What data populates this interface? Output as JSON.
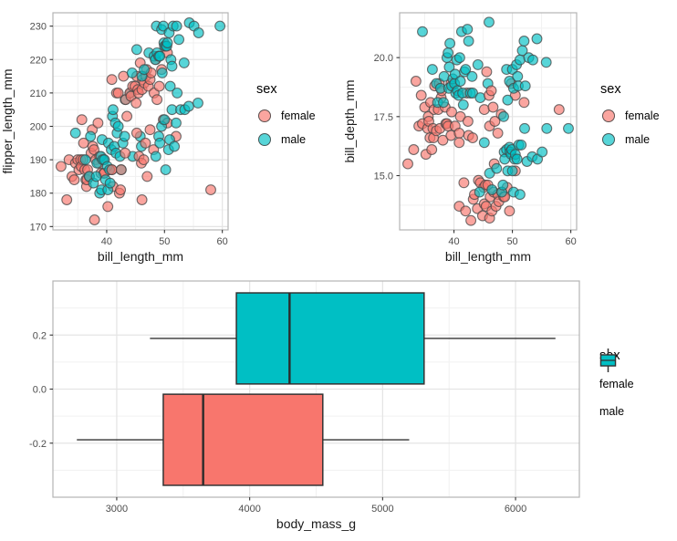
{
  "figure": {
    "background": "#FFFFFF"
  },
  "palette": {
    "female": "#F8766D",
    "male": "#00BFC4",
    "point_stroke": "#454545",
    "box_stroke": "#333333",
    "median_stroke": "#2B2B2B",
    "grid_major": "#E4E4E4",
    "grid_minor": "#F1F1F1",
    "panel_border": "#B4B4B4",
    "panel_background": "#FFFFFF",
    "tick_mark": "#333333",
    "tick_label": "#4D4D4D",
    "axis_title": "#1A1A1A"
  },
  "legend": {
    "title": "sex",
    "items": [
      {
        "label": "female",
        "color_key": "female"
      },
      {
        "label": "male",
        "color_key": "male"
      }
    ]
  },
  "chart_data": {
    "dataset_note": "each record: [bill_length_mm, flipper_length_mm, bill_depth_mm, sex(f/m)]; values estimated from plotted points",
    "records": [
      [
        32.1,
        188,
        15.5,
        "f"
      ],
      [
        33.1,
        178,
        16.1,
        "f"
      ],
      [
        33.5,
        190,
        19.0,
        "f"
      ],
      [
        34.0,
        185,
        17.1,
        "f"
      ],
      [
        34.4,
        184,
        18.4,
        "f"
      ],
      [
        34.6,
        189,
        17.2,
        "f"
      ],
      [
        35.0,
        190,
        17.9,
        "f"
      ],
      [
        35.2,
        187,
        15.9,
        "f"
      ],
      [
        35.5,
        190,
        17.0,
        "f"
      ],
      [
        35.6,
        188,
        17.5,
        "f"
      ],
      [
        35.7,
        202,
        17.3,
        "f"
      ],
      [
        35.9,
        190,
        16.6,
        "f"
      ],
      [
        36.0,
        195,
        18.1,
        "f"
      ],
      [
        36.2,
        187,
        16.1,
        "f"
      ],
      [
        36.4,
        184,
        17.0,
        "f"
      ],
      [
        36.5,
        182,
        16.6,
        "f"
      ],
      [
        36.6,
        184,
        17.8,
        "f"
      ],
      [
        36.7,
        187,
        18.8,
        "f"
      ],
      [
        37.0,
        185,
        16.9,
        "f"
      ],
      [
        37.3,
        192,
        17.8,
        "f"
      ],
      [
        37.5,
        199,
        18.9,
        "f"
      ],
      [
        37.6,
        194,
        17.0,
        "f"
      ],
      [
        37.8,
        193,
        18.3,
        "f"
      ],
      [
        37.9,
        172,
        18.6,
        "f"
      ],
      [
        38.1,
        190,
        16.5,
        "f"
      ],
      [
        38.5,
        201,
        17.9,
        "f"
      ],
      [
        38.6,
        189,
        17.2,
        "f"
      ],
      [
        38.8,
        191,
        17.2,
        "f"
      ],
      [
        39.0,
        186,
        17.1,
        "f"
      ],
      [
        39.5,
        186,
        16.7,
        "f"
      ],
      [
        39.5,
        190,
        18.9,
        "f"
      ],
      [
        39.6,
        186,
        17.7,
        "f"
      ],
      [
        40.2,
        176,
        17.1,
        "f"
      ],
      [
        40.9,
        187,
        16.8,
        "f"
      ],
      [
        41.1,
        182,
        17.5,
        "f"
      ],
      [
        42.2,
        180,
        18.5,
        "f"
      ],
      [
        34.6,
        198,
        21.1,
        "m"
      ],
      [
        36.3,
        190,
        19.5,
        "m"
      ],
      [
        37.0,
        185,
        18.9,
        "m"
      ],
      [
        37.2,
        197,
        18.1,
        "m"
      ],
      [
        37.7,
        183,
        18.7,
        "m"
      ],
      [
        38.2,
        185,
        18.1,
        "m"
      ],
      [
        38.3,
        189,
        19.2,
        "m"
      ],
      [
        38.8,
        180,
        20.0,
        "m"
      ],
      [
        39.0,
        191,
        20.2,
        "m"
      ],
      [
        39.1,
        181,
        18.7,
        "m"
      ],
      [
        39.2,
        196,
        19.6,
        "m"
      ],
      [
        39.3,
        190,
        20.6,
        "m"
      ],
      [
        39.6,
        190,
        18.8,
        "m"
      ],
      [
        39.8,
        184,
        19.1,
        "m"
      ],
      [
        40.1,
        188,
        18.9,
        "m"
      ],
      [
        40.2,
        181,
        19.3,
        "m"
      ],
      [
        40.3,
        195,
        18.5,
        "m"
      ],
      [
        40.5,
        187,
        19.9,
        "m"
      ],
      [
        40.6,
        183,
        18.6,
        "m"
      ],
      [
        40.8,
        193,
        18.4,
        "m"
      ],
      [
        41.0,
        203,
        20.0,
        "m"
      ],
      [
        41.1,
        205,
        19.0,
        "m"
      ],
      [
        41.3,
        194,
        21.1,
        "m"
      ],
      [
        41.5,
        201,
        18.5,
        "m"
      ],
      [
        41.6,
        192,
        18.0,
        "m"
      ],
      [
        41.8,
        198,
        19.4,
        "m"
      ],
      [
        42.0,
        200,
        19.5,
        "m"
      ],
      [
        42.3,
        191,
        21.2,
        "m"
      ],
      [
        42.5,
        187,
        20.7,
        "m"
      ],
      [
        42.8,
        195,
        18.5,
        "m"
      ],
      [
        43.1,
        197,
        19.2,
        "m"
      ],
      [
        43.2,
        208,
        18.5,
        "m"
      ],
      [
        44.1,
        210,
        19.7,
        "m"
      ],
      [
        44.5,
        191,
        18.3,
        "m"
      ],
      [
        45.8,
        197,
        18.9,
        "m"
      ],
      [
        46.0,
        194,
        21.5,
        "m"
      ],
      [
        40.9,
        187,
        16.4,
        "f"
      ],
      [
        42.4,
        181,
        17.3,
        "f"
      ],
      [
        42.5,
        187,
        16.7,
        "f"
      ],
      [
        43.2,
        192,
        16.6,
        "f"
      ],
      [
        45.2,
        198,
        17.8,
        "f"
      ],
      [
        45.6,
        191,
        19.4,
        "f"
      ],
      [
        46.0,
        189,
        18.4,
        "f"
      ],
      [
        46.1,
        178,
        17.1,
        "f"
      ],
      [
        46.4,
        190,
        18.6,
        "f"
      ],
      [
        46.7,
        195,
        17.9,
        "f"
      ],
      [
        47.0,
        185,
        17.3,
        "f"
      ],
      [
        47.5,
        199,
        16.8,
        "f"
      ],
      [
        48.1,
        193,
        17.6,
        "f"
      ],
      [
        49.8,
        202,
        18.9,
        "f"
      ],
      [
        50.5,
        201,
        18.4,
        "f"
      ],
      [
        52.0,
        197,
        18.1,
        "f"
      ],
      [
        58.0,
        181,
        17.8,
        "f"
      ],
      [
        48.5,
        191,
        17.5,
        "m"
      ],
      [
        49.0,
        197,
        19.5,
        "m"
      ],
      [
        49.2,
        195,
        18.2,
        "m"
      ],
      [
        49.5,
        200,
        19.0,
        "m"
      ],
      [
        50.0,
        202,
        19.5,
        "m"
      ],
      [
        50.2,
        187,
        18.7,
        "m"
      ],
      [
        50.7,
        193,
        19.7,
        "m"
      ],
      [
        50.9,
        196,
        19.2,
        "m"
      ],
      [
        51.0,
        212,
        18.8,
        "m"
      ],
      [
        51.3,
        205,
        19.9,
        "m"
      ],
      [
        51.7,
        194,
        20.3,
        "m"
      ],
      [
        52.0,
        201,
        20.7,
        "m"
      ],
      [
        52.2,
        210,
        18.8,
        "m"
      ],
      [
        52.8,
        205,
        20.0,
        "m"
      ],
      [
        53.5,
        205,
        19.9,
        "m"
      ],
      [
        54.2,
        206,
        20.8,
        "m"
      ],
      [
        55.8,
        207,
        19.8,
        "m"
      ],
      [
        40.9,
        214,
        13.7,
        "f"
      ],
      [
        41.7,
        210,
        14.7,
        "f"
      ],
      [
        42.0,
        210,
        13.5,
        "f"
      ],
      [
        42.9,
        215,
        13.1,
        "f"
      ],
      [
        43.3,
        208,
        14.0,
        "f"
      ],
      [
        43.5,
        203,
        14.2,
        "f"
      ],
      [
        44.0,
        210,
        13.6,
        "f"
      ],
      [
        44.2,
        209,
        14.8,
        "f"
      ],
      [
        44.5,
        212,
        14.7,
        "f"
      ],
      [
        44.9,
        212,
        13.3,
        "f"
      ],
      [
        45.1,
        207,
        14.5,
        "f"
      ],
      [
        45.2,
        215,
        13.8,
        "f"
      ],
      [
        45.4,
        211,
        14.6,
        "f"
      ],
      [
        45.5,
        210,
        13.7,
        "f"
      ],
      [
        45.8,
        219,
        14.6,
        "f"
      ],
      [
        46.1,
        211,
        13.2,
        "f"
      ],
      [
        46.2,
        214,
        14.1,
        "f"
      ],
      [
        46.5,
        213,
        13.5,
        "f"
      ],
      [
        46.8,
        215,
        14.3,
        "f"
      ],
      [
        46.9,
        217,
        15.5,
        "f"
      ],
      [
        47.2,
        212,
        13.7,
        "f"
      ],
      [
        47.5,
        214,
        14.2,
        "f"
      ],
      [
        47.7,
        216,
        13.9,
        "f"
      ],
      [
        48.2,
        210,
        14.3,
        "f"
      ],
      [
        48.5,
        220,
        14.1,
        "f"
      ],
      [
        48.7,
        208,
        14.1,
        "f"
      ],
      [
        49.1,
        212,
        14.5,
        "f"
      ],
      [
        49.5,
        217,
        13.5,
        "f"
      ],
      [
        50.5,
        222,
        15.2,
        "f"
      ],
      [
        44.4,
        216,
        14.3,
        "m"
      ],
      [
        45.2,
        223,
        16.4,
        "m"
      ],
      [
        46.1,
        215,
        15.1,
        "m"
      ],
      [
        46.5,
        217,
        14.4,
        "m"
      ],
      [
        47.3,
        222,
        15.3,
        "m"
      ],
      [
        48.2,
        221,
        14.3,
        "m"
      ],
      [
        48.4,
        220,
        14.6,
        "m"
      ],
      [
        48.6,
        230,
        16.0,
        "m"
      ],
      [
        48.7,
        222,
        15.7,
        "m"
      ],
      [
        49.0,
        221,
        16.1,
        "m"
      ],
      [
        49.2,
        221,
        15.2,
        "m"
      ],
      [
        49.5,
        229,
        16.2,
        "m"
      ],
      [
        49.6,
        216,
        16.0,
        "m"
      ],
      [
        49.8,
        230,
        15.9,
        "m"
      ],
      [
        49.9,
        225,
        16.1,
        "m"
      ],
      [
        50.0,
        224,
        15.2,
        "m"
      ],
      [
        50.2,
        224,
        14.3,
        "m"
      ],
      [
        50.4,
        224,
        15.7,
        "m"
      ],
      [
        50.5,
        225,
        15.9,
        "m"
      ],
      [
        50.8,
        228,
        15.7,
        "m"
      ],
      [
        51.1,
        220,
        16.3,
        "m"
      ],
      [
        51.3,
        218,
        14.2,
        "m"
      ],
      [
        51.5,
        230,
        16.3,
        "m"
      ],
      [
        52.1,
        230,
        17.0,
        "m"
      ],
      [
        52.5,
        226,
        15.6,
        "m"
      ],
      [
        53.4,
        219,
        15.8,
        "m"
      ],
      [
        54.3,
        231,
        15.7,
        "m"
      ],
      [
        55.1,
        230,
        16.0,
        "m"
      ],
      [
        55.9,
        228,
        17.0,
        "m"
      ],
      [
        59.6,
        230,
        17.0,
        "m"
      ]
    ],
    "charts": [
      {
        "id": "scatter-flipper",
        "type": "scatter",
        "x_index": 0,
        "y_index": 1,
        "group_index": 3,
        "xlabel": "bill_length_mm",
        "ylabel": "flipper_length_mm",
        "xlim": [
          30.7,
          61.0
        ],
        "ylim": [
          169.0,
          234.0
        ],
        "x_ticks": [
          40,
          50,
          60
        ],
        "x_tick_labels": [
          "40",
          "50",
          "60"
        ],
        "y_ticks": [
          170,
          180,
          190,
          200,
          210,
          220,
          230
        ],
        "y_tick_labels": [
          "170",
          "180",
          "190",
          "200",
          "210",
          "220",
          "230"
        ],
        "x_minor": [
          35,
          45,
          55
        ],
        "y_minor": [
          175,
          185,
          195,
          205,
          215,
          225
        ],
        "grid": true,
        "legend_title": "sex",
        "legend_position": "right",
        "groups": {
          "f": "female",
          "m": "male"
        }
      },
      {
        "id": "scatter-depth",
        "type": "scatter",
        "x_index": 0,
        "y_index": 2,
        "group_index": 3,
        "xlabel": "bill_length_mm",
        "ylabel": "bill_depth_mm",
        "xlim": [
          30.7,
          61.0
        ],
        "ylim": [
          12.7,
          21.9
        ],
        "x_ticks": [
          40,
          50,
          60
        ],
        "x_tick_labels": [
          "40",
          "50",
          "60"
        ],
        "y_ticks": [
          15.0,
          17.5,
          20.0
        ],
        "y_tick_labels": [
          "15.0",
          "17.5",
          "20.0"
        ],
        "x_minor": [
          35,
          45,
          55
        ],
        "y_minor": [
          13.75,
          16.25,
          18.75,
          21.25
        ],
        "grid": true,
        "legend_title": "sex",
        "legend_position": "right",
        "groups": {
          "f": "female",
          "m": "male"
        }
      },
      {
        "id": "box-mass",
        "type": "boxplot",
        "orientation": "horizontal",
        "xlabel": "body_mass_g",
        "ylabel": "",
        "xlim": [
          2520,
          6480
        ],
        "x_ticks": [
          3000,
          4000,
          5000,
          6000
        ],
        "x_tick_labels": [
          "3000",
          "4000",
          "5000",
          "6000"
        ],
        "x_minor": [
          3500,
          4500,
          5500
        ],
        "ylim": [
          -0.4,
          0.4
        ],
        "y_ticks": [
          0.2,
          0.0,
          -0.2
        ],
        "y_tick_labels": [
          "0.2",
          "0.0",
          "-0.2"
        ],
        "y_minor": [
          0.3,
          0.1,
          -0.1,
          -0.3
        ],
        "grid": true,
        "legend_title": "sex",
        "legend_position": "right",
        "boxes": [
          {
            "group": "male",
            "label": "male",
            "y_center": 0.1875,
            "y_low": 0.019,
            "y_high": 0.356,
            "whisker_min": 3250,
            "q1": 3900,
            "median": 4300,
            "q3": 5312,
            "whisker_max": 6300
          },
          {
            "group": "female",
            "label": "female",
            "y_center": -0.1875,
            "y_low": -0.356,
            "y_high": -0.019,
            "whisker_min": 2700,
            "q1": 3350,
            "median": 3650,
            "q3": 4550,
            "whisker_max": 5200
          }
        ]
      }
    ]
  }
}
